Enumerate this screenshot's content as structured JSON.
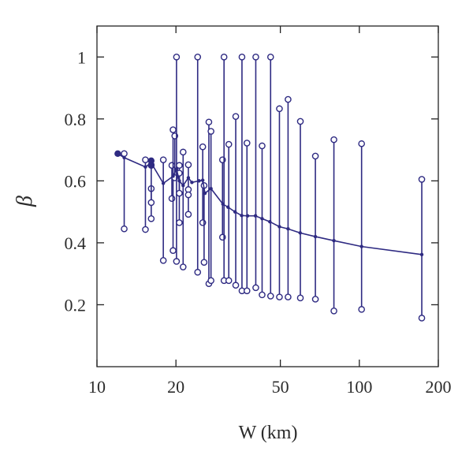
{
  "chart_data": {
    "type": "line",
    "title": "",
    "xlabel": "W (km)",
    "ylabel": "β",
    "x_scale": "log",
    "xlim": [
      10,
      200
    ],
    "ylim": [
      0,
      1.1
    ],
    "x_ticks": [
      10,
      20,
      50,
      100,
      200
    ],
    "y_ticks": [
      0.2,
      0.4,
      0.6,
      0.8,
      1
    ],
    "grid": false,
    "colors": {
      "series": "#2e2a82",
      "axis": "#222222"
    },
    "series": [
      {
        "style": "line-with-dots",
        "points": [
          {
            "x": 12.0,
            "y": 0.688
          },
          {
            "x": 12.7,
            "y": 0.675
          },
          {
            "x": 15.3,
            "y": 0.645
          },
          {
            "x": 16.1,
            "y": 0.658
          },
          {
            "x": 17.9,
            "y": 0.592
          },
          {
            "x": 19.5,
            "y": 0.615
          },
          {
            "x": 20.1,
            "y": 0.638
          },
          {
            "x": 20.6,
            "y": 0.6
          },
          {
            "x": 21.3,
            "y": 0.585
          },
          {
            "x": 22.3,
            "y": 0.61
          },
          {
            "x": 23.0,
            "y": 0.595
          },
          {
            "x": 24.5,
            "y": 0.6
          },
          {
            "x": 25.3,
            "y": 0.602
          },
          {
            "x": 25.8,
            "y": 0.56
          },
          {
            "x": 27.2,
            "y": 0.575
          },
          {
            "x": 30.2,
            "y": 0.525
          },
          {
            "x": 31.6,
            "y": 0.515
          },
          {
            "x": 33.6,
            "y": 0.5
          },
          {
            "x": 35.6,
            "y": 0.488
          },
          {
            "x": 37.5,
            "y": 0.487
          },
          {
            "x": 40.2,
            "y": 0.487
          },
          {
            "x": 42.6,
            "y": 0.478
          },
          {
            "x": 45.6,
            "y": 0.468
          },
          {
            "x": 49.6,
            "y": 0.452
          },
          {
            "x": 53.5,
            "y": 0.445
          },
          {
            "x": 59.5,
            "y": 0.432
          },
          {
            "x": 68.0,
            "y": 0.42
          },
          {
            "x": 80.0,
            "y": 0.407
          },
          {
            "x": 102.0,
            "y": 0.388
          },
          {
            "x": 173.0,
            "y": 0.362
          }
        ]
      },
      {
        "style": "vertical-range-bars",
        "bars": [
          {
            "x": 12.7,
            "low": 0.445,
            "high": 0.688
          },
          {
            "x": 15.3,
            "low": 0.443,
            "high": 0.668
          },
          {
            "x": 16.1,
            "low": 0.478,
            "high": 0.575
          },
          {
            "x": 16.1,
            "low": 0.53,
            "high": 0.65
          },
          {
            "x": 17.9,
            "low": 0.343,
            "high": 0.668
          },
          {
            "x": 19.3,
            "low": 0.543,
            "high": 0.65
          },
          {
            "x": 19.5,
            "low": 0.375,
            "high": 0.765
          },
          {
            "x": 19.8,
            "low": 0.61,
            "high": 0.745
          },
          {
            "x": 20.1,
            "low": 0.34,
            "high": 1.0
          },
          {
            "x": 20.6,
            "low": 0.465,
            "high": 0.65
          },
          {
            "x": 20.6,
            "low": 0.56,
            "high": 0.625
          },
          {
            "x": 21.3,
            "low": 0.322,
            "high": 0.693
          },
          {
            "x": 22.3,
            "low": 0.492,
            "high": 0.652
          },
          {
            "x": 22.3,
            "low": 0.555,
            "high": 0.572
          },
          {
            "x": 24.2,
            "low": 0.305,
            "high": 1.0
          },
          {
            "x": 25.3,
            "low": 0.465,
            "high": 0.71
          },
          {
            "x": 25.6,
            "low": 0.337,
            "high": 0.585
          },
          {
            "x": 26.7,
            "low": 0.268,
            "high": 0.79
          },
          {
            "x": 27.2,
            "low": 0.278,
            "high": 0.76
          },
          {
            "x": 30.1,
            "low": 0.418,
            "high": 0.668
          },
          {
            "x": 30.5,
            "low": 0.278,
            "high": 1.0
          },
          {
            "x": 31.8,
            "low": 0.278,
            "high": 0.718
          },
          {
            "x": 33.8,
            "low": 0.263,
            "high": 0.808
          },
          {
            "x": 35.7,
            "low": 0.245,
            "high": 1.0
          },
          {
            "x": 37.3,
            "low": 0.245,
            "high": 0.722
          },
          {
            "x": 40.3,
            "low": 0.255,
            "high": 1.0
          },
          {
            "x": 42.6,
            "low": 0.232,
            "high": 0.713
          },
          {
            "x": 45.9,
            "low": 0.228,
            "high": 1.0
          },
          {
            "x": 49.6,
            "low": 0.225,
            "high": 0.833
          },
          {
            "x": 53.5,
            "low": 0.225,
            "high": 0.863
          },
          {
            "x": 59.6,
            "low": 0.222,
            "high": 0.792
          },
          {
            "x": 68.0,
            "low": 0.218,
            "high": 0.68
          },
          {
            "x": 80.0,
            "low": 0.18,
            "high": 0.733
          },
          {
            "x": 102.0,
            "low": 0.185,
            "high": 0.72
          },
          {
            "x": 173.0,
            "low": 0.157,
            "high": 0.605
          }
        ]
      }
    ],
    "highlighted_points": [
      {
        "x": 12.0,
        "y": 0.688
      },
      {
        "x": 16.1,
        "y": 0.665
      },
      {
        "x": 16.1,
        "y": 0.652
      }
    ]
  }
}
